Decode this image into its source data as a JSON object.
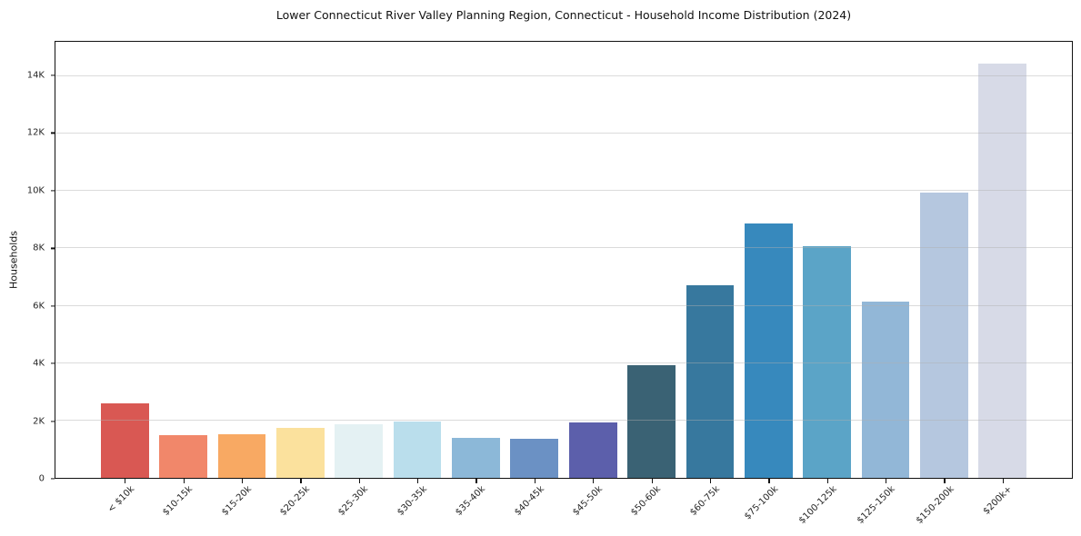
{
  "title": "Lower Connecticut River Valley Planning Region, Connecticut - Household Income Distribution (2024)",
  "chart_data": {
    "type": "bar",
    "title": "Lower Connecticut River Valley Planning Region, Connecticut - Household Income Distribution (2024)",
    "xlabel": "",
    "ylabel": "Households",
    "categories": [
      "< $10k",
      "$10-15k",
      "$15-20k",
      "$20-25k",
      "$25-30k",
      "$30-35k",
      "$35-40k",
      "$40-45k",
      "$45-50k",
      "$50-60k",
      "$60-75k",
      "$75-100k",
      "$100-125k",
      "$125-150k",
      "$150-200k",
      "$200k+"
    ],
    "values": [
      2600,
      1480,
      1520,
      1750,
      1880,
      1970,
      1400,
      1350,
      1930,
      3930,
      6710,
      8870,
      8070,
      6130,
      9930,
      14450
    ],
    "bar_colors": [
      "#d95853",
      "#f1876a",
      "#f8a963",
      "#fbe19d",
      "#e4f1f3",
      "#badeec",
      "#8cb8d8",
      "#6b91c4",
      "#5c5fab",
      "#3a6274",
      "#37789e",
      "#3789bd",
      "#5ba4c7",
      "#92b7d7",
      "#b5c7df",
      "#d7dae7"
    ],
    "ylim": [
      0,
      15200
    ],
    "yticks": [
      {
        "value": 0,
        "label": "0"
      },
      {
        "value": 2000,
        "label": "2K"
      },
      {
        "value": 4000,
        "label": "4K"
      },
      {
        "value": 6000,
        "label": "6K"
      },
      {
        "value": 8000,
        "label": "8K"
      },
      {
        "value": 10000,
        "label": "10K"
      },
      {
        "value": 12000,
        "label": "12K"
      },
      {
        "value": 14000,
        "label": "14K"
      }
    ],
    "grid": "horizontal-only",
    "grid_over_bars": true,
    "legend": "none",
    "background_color": "#ffffff",
    "spine_color": "#111111",
    "x_tick_label_rotation_deg": 45
  }
}
